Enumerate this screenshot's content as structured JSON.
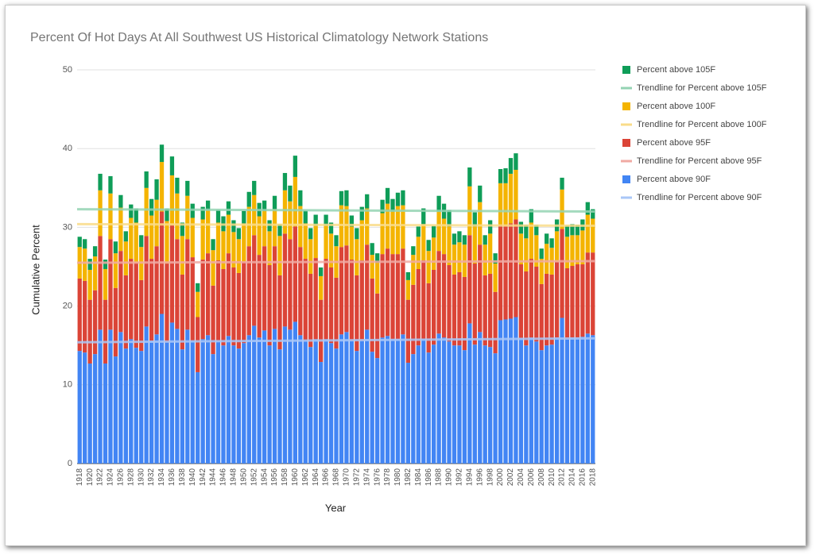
{
  "chart_data": {
    "type": "bar",
    "stacked": true,
    "title": "Percent Of Hot Days At All Southwest US Historical Climatology Network Stations",
    "xlabel": "Year",
    "ylabel": "Cumulative Percent",
    "categories": [
      "1918",
      null,
      "1920",
      null,
      "1922",
      null,
      "1924",
      null,
      "1926",
      null,
      "1928",
      null,
      "1930",
      null,
      "1932",
      null,
      "1934",
      null,
      "1936",
      null,
      "1938",
      null,
      "1940",
      null,
      "1942",
      null,
      "1944",
      null,
      "1946",
      null,
      "1948",
      null,
      "1950",
      null,
      "1952",
      null,
      "1954",
      null,
      "1956",
      null,
      "1958",
      null,
      "1960",
      null,
      "1962",
      null,
      "1964",
      null,
      "1966",
      null,
      "1968",
      null,
      "1970",
      null,
      "1972",
      null,
      "1974",
      null,
      "1976",
      null,
      "1978",
      null,
      "1980",
      null,
      "1982",
      null,
      "1984",
      null,
      "1986",
      null,
      "1988",
      null,
      "1990",
      null,
      "1992",
      null,
      "1994",
      null,
      "1996",
      null,
      "1998",
      null,
      "2000",
      null,
      "2002",
      null,
      "2004",
      null,
      "2006",
      null,
      "2008",
      null,
      "2010",
      null,
      "2012",
      null,
      "2014",
      null,
      "2016",
      null,
      "2018"
    ],
    "series": [
      {
        "name": "Percent above 90F",
        "color": "#4285f4",
        "values": [
          14.3,
          14.1,
          12.7,
          13.9,
          17.0,
          12.7,
          17.0,
          13.6,
          16.7,
          14.6,
          15.8,
          14.7,
          14.3,
          17.4,
          15.6,
          16.4,
          19.0,
          15.4,
          17.9,
          17.1,
          14.5,
          17.0,
          15.6,
          11.6,
          15.8,
          16.3,
          13.9,
          15.6,
          15.0,
          16.2,
          15.0,
          14.6,
          15.3,
          16.3,
          17.5,
          16.0,
          16.9,
          15.0,
          17.1,
          14.5,
          17.4,
          17.0,
          18.0,
          16.3,
          15.6,
          14.8,
          15.8,
          12.9,
          15.8,
          15.3,
          14.6,
          16.4,
          16.7,
          15.6,
          14.3,
          15.6,
          17.0,
          14.2,
          13.4,
          16.0,
          16.2,
          15.8,
          15.8,
          16.4,
          12.8,
          13.9,
          15.0,
          15.8,
          14.1,
          15.1,
          16.5,
          16.0,
          15.5,
          15.0,
          15.0,
          14.4,
          17.8,
          15.1,
          16.7,
          15.0,
          14.8,
          14.0,
          18.2,
          18.3,
          18.4,
          18.6,
          15.9,
          15.0,
          16.0,
          15.5,
          14.4,
          15.0,
          15.1,
          16.0,
          18.5,
          15.8,
          16.0,
          16.0,
          16.1,
          16.5,
          16.3
        ]
      },
      {
        "name": "Percent above 95F",
        "color": "#db4437",
        "values": [
          9.2,
          9.1,
          8.1,
          8.1,
          11.9,
          8.1,
          11.5,
          8.7,
          10.3,
          9.3,
          10.2,
          10.8,
          9.0,
          11.5,
          10.4,
          11.2,
          13.0,
          10.0,
          12.4,
          11.4,
          9.5,
          11.5,
          10.6,
          7.0,
          10.1,
          10.4,
          8.7,
          10.2,
          9.7,
          10.5,
          9.9,
          9.6,
          10.3,
          11.3,
          11.5,
          10.5,
          10.7,
          10.2,
          10.5,
          9.4,
          11.8,
          11.5,
          12.1,
          11.2,
          10.4,
          9.3,
          10.3,
          7.9,
          10.2,
          9.6,
          9.0,
          11.1,
          11.0,
          10.3,
          9.6,
          10.2,
          10.8,
          9.3,
          8.2,
          10.6,
          11.1,
          10.8,
          10.8,
          10.9,
          8.0,
          8.8,
          9.7,
          10.0,
          8.8,
          9.5,
          10.5,
          10.6,
          9.7,
          9.0,
          9.3,
          9.3,
          11.2,
          10.3,
          11.1,
          8.9,
          9.3,
          7.8,
          12.1,
          11.9,
          12.1,
          12.4,
          9.4,
          9.4,
          10.0,
          9.5,
          8.4,
          9.1,
          8.9,
          9.6,
          11.3,
          9.0,
          9.1,
          9.3,
          9.2,
          10.3,
          10.5
        ]
      },
      {
        "name": "Percent above 100F",
        "color": "#f4b400",
        "values": [
          4.0,
          4.1,
          3.8,
          4.3,
          5.8,
          3.9,
          5.8,
          4.4,
          5.5,
          4.3,
          5.2,
          5.1,
          4.2,
          6.1,
          5.5,
          5.9,
          6.3,
          5.4,
          6.3,
          5.8,
          4.9,
          5.5,
          5.0,
          3.2,
          5.1,
          5.5,
          4.5,
          4.8,
          4.8,
          4.9,
          4.5,
          4.3,
          4.9,
          5.0,
          5.1,
          4.9,
          4.5,
          4.3,
          4.7,
          5.0,
          5.5,
          4.8,
          6.3,
          5.2,
          4.5,
          4.4,
          4.1,
          3.0,
          4.2,
          4.3,
          4.0,
          5.3,
          5.0,
          4.2,
          4.6,
          5.1,
          4.6,
          3.0,
          3.9,
          5.2,
          5.7,
          5.4,
          6.1,
          5.5,
          2.5,
          3.8,
          4.1,
          4.6,
          4.1,
          4.1,
          5.0,
          4.5,
          4.9,
          3.8,
          3.8,
          4.1,
          6.2,
          4.7,
          5.4,
          3.9,
          5.1,
          3.6,
          5.3,
          5.4,
          6.3,
          6.3,
          3.9,
          4.2,
          4.6,
          4.0,
          3.2,
          3.8,
          3.4,
          3.9,
          5.0,
          4.0,
          3.9,
          3.7,
          4.3,
          4.8,
          4.3
        ]
      },
      {
        "name": "Percent above 105F",
        "color": "#0f9d58",
        "values": [
          1.3,
          1.2,
          1.4,
          1.3,
          2.1,
          1.2,
          2.2,
          1.5,
          1.6,
          1.3,
          1.7,
          1.8,
          1.5,
          2.1,
          2.1,
          2.6,
          2.2,
          1.6,
          2.4,
          2.0,
          1.7,
          1.9,
          1.8,
          1.1,
          1.6,
          1.2,
          1.4,
          1.6,
          1.9,
          1.7,
          1.5,
          1.4,
          1.6,
          1.9,
          1.8,
          1.7,
          1.3,
          1.4,
          1.7,
          1.5,
          2.2,
          2.0,
          2.7,
          2.0,
          1.6,
          1.4,
          1.4,
          1.1,
          1.4,
          1.4,
          1.4,
          1.8,
          2.0,
          1.4,
          1.4,
          1.7,
          1.8,
          1.5,
          1.2,
          1.7,
          2.0,
          1.6,
          1.7,
          1.9,
          1.0,
          1.1,
          1.3,
          2.0,
          1.4,
          1.5,
          2.0,
          1.9,
          2.1,
          1.4,
          1.4,
          1.2,
          2.4,
          1.8,
          2.1,
          1.2,
          1.7,
          1.3,
          1.8,
          1.9,
          2.0,
          2.1,
          1.5,
          1.7,
          1.7,
          1.3,
          1.3,
          1.3,
          1.2,
          1.5,
          1.5,
          1.4,
          1.4,
          1.3,
          1.4,
          1.6,
          1.2
        ]
      }
    ],
    "trendlines": [
      {
        "name": "Trendline for Percent above 90F",
        "color": "#a9c7f7",
        "values": [
          15.4,
          15.9
        ]
      },
      {
        "name": "Trendline for Percent above 95F",
        "color": "#f0aaa3",
        "values": [
          25.5,
          25.7
        ]
      },
      {
        "name": "Trendline for Percent above 100F",
        "color": "#f9dc8a",
        "values": [
          30.4,
          30.2
        ]
      },
      {
        "name": "Trendline for Percent above 105F",
        "color": "#94d3b3",
        "values": [
          32.3,
          32.0
        ]
      }
    ],
    "ylim": [
      0,
      50
    ],
    "yticks": [
      0,
      10,
      20,
      30,
      40,
      50
    ],
    "grid": true,
    "legend": "right"
  }
}
